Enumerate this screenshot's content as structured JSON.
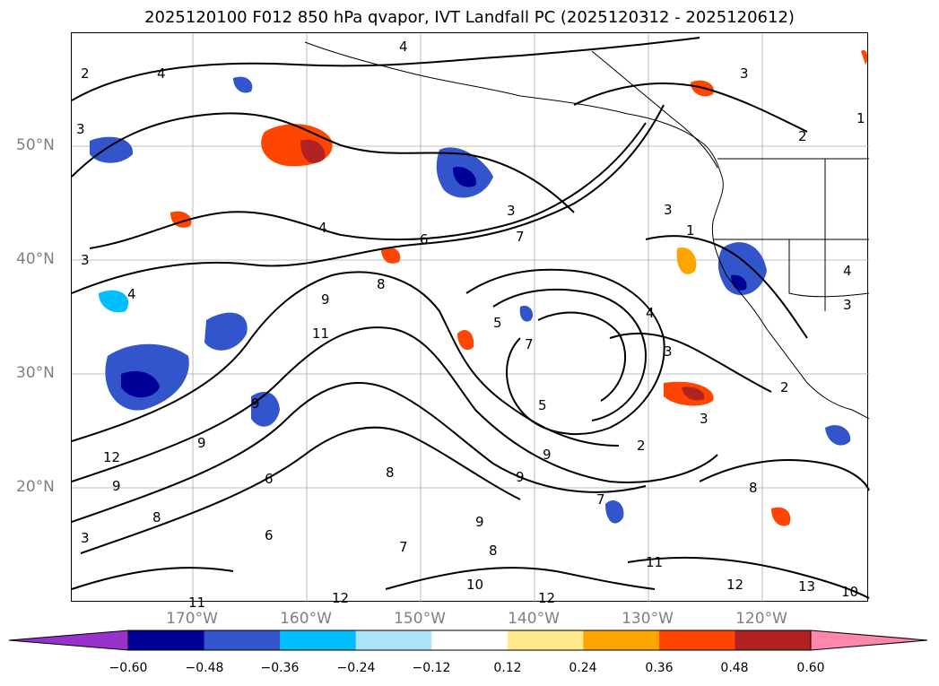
{
  "title": "2025120100 F012 850 hPa qvapor, IVT Landfall PC (2025120312 - 2025120612)",
  "lat_labels": [
    "50°N",
    "40°N",
    "30°N",
    "20°N"
  ],
  "lon_labels": [
    "170°W",
    "160°W",
    "150°W",
    "140°W",
    "130°W",
    "120°W"
  ],
  "contour_labels": [
    "2",
    "4",
    "3",
    "3",
    "4",
    "3",
    "1",
    "3",
    "4",
    "6",
    "7",
    "3",
    "2",
    "4",
    "3",
    "9",
    "8",
    "11",
    "9",
    "5",
    "7",
    "12",
    "9",
    "9",
    "8",
    "6",
    "9",
    "8",
    "8",
    "10",
    "12",
    "11",
    "12",
    "13",
    "10",
    "4",
    "3",
    "4",
    "3",
    "1",
    "2",
    "3",
    "2",
    "7",
    "9",
    "6",
    "9",
    "8",
    "11",
    "12",
    "7",
    "5"
  ],
  "colorbar": {
    "ticks": [
      "−0.60",
      "−0.48",
      "−0.36",
      "−0.24",
      "−0.12",
      "0.12",
      "0.24",
      "0.36",
      "0.48",
      "0.60"
    ],
    "colors": [
      "#9932CC",
      "#000099",
      "#3355CC",
      "#00BFFF",
      "#ADE3FA",
      "#FFFFFF",
      "#FFE98C",
      "#FFA500",
      "#FF4500",
      "#B22222",
      "#FF88AA",
      "#FFC0CB"
    ]
  },
  "legend": {
    "extend": "both"
  }
}
